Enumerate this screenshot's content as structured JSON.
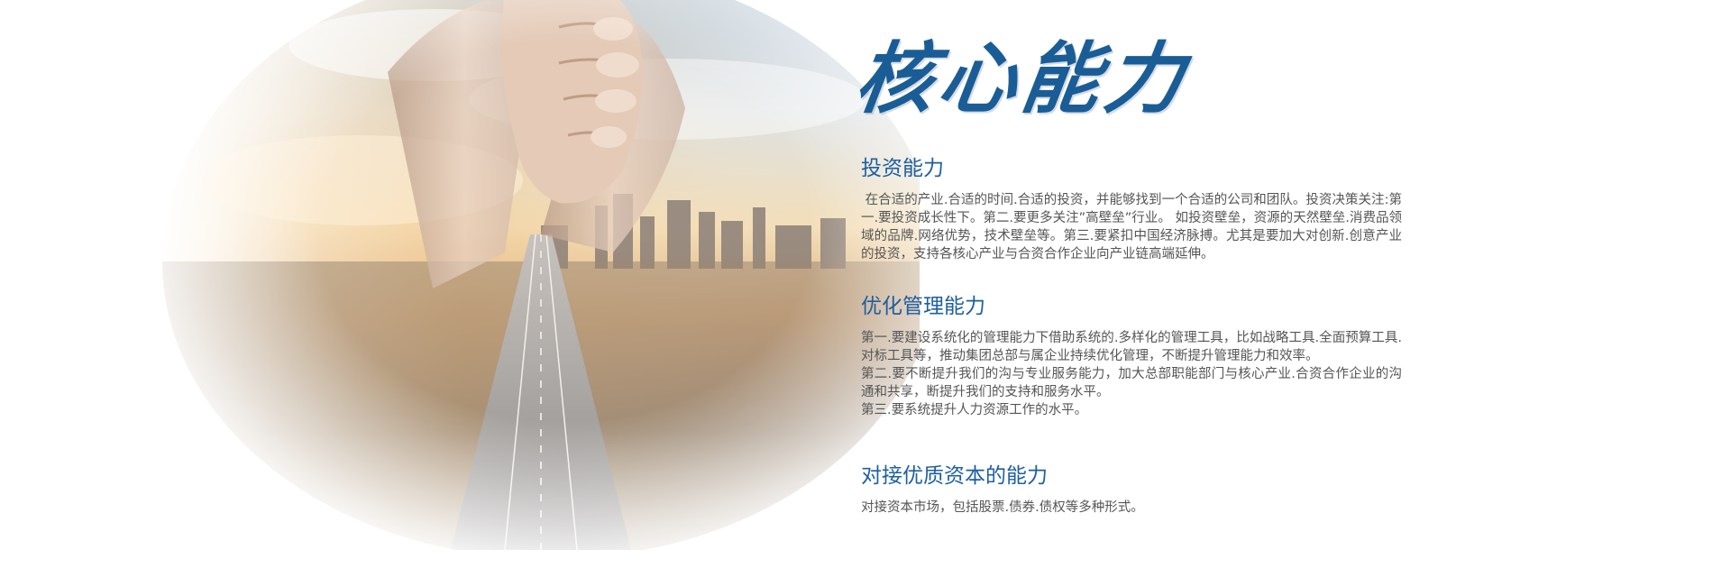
{
  "heading": "核心能力",
  "sections": [
    {
      "title": "投资能力",
      "paragraphs": [
        " 在合适的产业.合适的时间.合适的投资，并能够找到一个合适的公司和团队。投资决策关注:第一.要投资成长性下。第二.要更多关注”高壁垒”行业。 如投资壁垒，资源的天然壁垒.消费品领域的品牌.网络优势，技术壁垒等。第三.要紧扣中国经济脉搏。尤其是要加大对创新.创意产业的投资，支持各核心产业与合资合作企业向产业链高端延伸。"
      ]
    },
    {
      "title": "优化管理能力",
      "paragraphs": [
        "第一.要建设系统化的管理能力下借助系统的.多样化的管理工具，比如战略工具.全面预算工具.对标工具等，推动集团总部与属企业持续优化管理，不断提升管理能力和效率。",
        "第二.要不断提升我们的沟与专业服务能力，加大总部职能部门与核心产业.合资合作企业的沟通和共享，断提升我们的支持和服务水平。",
        "第三.要系统提升人力资源工作的水平。"
      ]
    },
    {
      "title": "对接优质资本的能力",
      "paragraphs": [
        "对接资本市场，包括股票.债券.债权等多种形式。"
      ]
    }
  ],
  "colors": {
    "accent": "#1e5fa0",
    "heading": "#1a5d96",
    "body_text": "#555555"
  }
}
